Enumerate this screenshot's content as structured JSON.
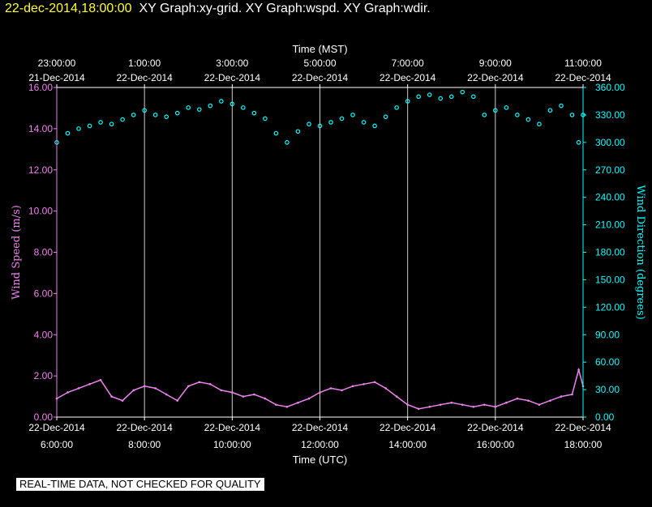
{
  "header": {
    "timestamp": "22-dec-2014,18:00:00",
    "graphs": "XY Graph:xy-grid.  XY Graph:wspd.  XY Graph:wdir."
  },
  "notice": "REAL-TIME DATA, NOT CHECKED FOR QUALITY",
  "colors": {
    "background": "#000000",
    "speed": "#ee82ee",
    "direction": "#00ffff",
    "grid": "#ffffff",
    "timestamp": "#ffff33"
  },
  "chart_data": {
    "type": "scatter",
    "top_axis_title": "Time (MST)",
    "bottom_axis_title": "Time (UTC)",
    "top_ticks": [
      {
        "time": "23:00:00",
        "date": "21-Dec-2014"
      },
      {
        "time": "1:00:00",
        "date": "22-Dec-2014"
      },
      {
        "time": "3:00:00",
        "date": "22-Dec-2014"
      },
      {
        "time": "5:00:00",
        "date": "22-Dec-2014"
      },
      {
        "time": "7:00:00",
        "date": "22-Dec-2014"
      },
      {
        "time": "9:00:00",
        "date": "22-Dec-2014"
      },
      {
        "time": "11:00:00",
        "date": "22-Dec-2014"
      }
    ],
    "bottom_ticks": [
      {
        "date": "22-Dec-2014",
        "time": "6:00:00"
      },
      {
        "date": "22-Dec-2014",
        "time": "8:00:00"
      },
      {
        "date": "22-Dec-2014",
        "time": "10:00:00"
      },
      {
        "date": "22-Dec-2014",
        "time": "12:00:00"
      },
      {
        "date": "22-Dec-2014",
        "time": "14:00:00"
      },
      {
        "date": "22-Dec-2014",
        "time": "16:00:00"
      },
      {
        "date": "22-Dec-2014",
        "time": "18:00:00"
      }
    ],
    "x_range_utc_hours": [
      6,
      18
    ],
    "grid": "vertical lines at each 2-hour tick",
    "y_left": {
      "label": "Wind Speed (m/s)",
      "range": [
        0,
        16
      ],
      "ticks": [
        "0.00",
        "2.00",
        "4.00",
        "6.00",
        "8.00",
        "10.00",
        "12.00",
        "14.00",
        "16.00"
      ]
    },
    "y_right": {
      "label": "Wind Direction (degrees)",
      "range": [
        0,
        360
      ],
      "ticks": [
        "0.00",
        "30.00",
        "60.00",
        "90.00",
        "120.00",
        "150.00",
        "180.00",
        "210.00",
        "240.00",
        "270.00",
        "300.00",
        "330.00",
        "360.00"
      ]
    },
    "series": [
      {
        "key": "speed",
        "axis": "left",
        "style": "line",
        "x_utc_hours": [
          6.0,
          6.25,
          6.5,
          6.75,
          7.0,
          7.25,
          7.5,
          7.75,
          8.0,
          8.25,
          8.5,
          8.75,
          9.0,
          9.25,
          9.5,
          9.75,
          10.0,
          10.25,
          10.5,
          10.75,
          11.0,
          11.25,
          11.5,
          11.75,
          12.0,
          12.25,
          12.5,
          12.75,
          13.0,
          13.25,
          13.5,
          13.75,
          14.0,
          14.25,
          14.5,
          14.75,
          15.0,
          15.25,
          15.5,
          15.75,
          16.0,
          16.25,
          16.5,
          16.75,
          17.0,
          17.25,
          17.5,
          17.75,
          17.9,
          18.0
        ],
        "values": [
          0.9,
          1.2,
          1.4,
          1.6,
          1.8,
          1.0,
          0.8,
          1.3,
          1.5,
          1.4,
          1.1,
          0.8,
          1.5,
          1.7,
          1.6,
          1.3,
          1.2,
          1.0,
          1.1,
          0.9,
          0.6,
          0.5,
          0.7,
          0.9,
          1.2,
          1.4,
          1.3,
          1.5,
          1.6,
          1.7,
          1.4,
          1.0,
          0.6,
          0.4,
          0.5,
          0.6,
          0.7,
          0.6,
          0.5,
          0.6,
          0.5,
          0.7,
          0.9,
          0.8,
          0.6,
          0.8,
          1.0,
          1.1,
          2.3,
          1.5
        ]
      },
      {
        "key": "direction",
        "axis": "right",
        "style": "circles",
        "x_utc_hours": [
          6.0,
          6.25,
          6.5,
          6.75,
          7.0,
          7.25,
          7.5,
          7.75,
          8.0,
          8.25,
          8.5,
          8.75,
          9.0,
          9.25,
          9.5,
          9.75,
          10.0,
          10.25,
          10.5,
          10.75,
          11.0,
          11.25,
          11.5,
          11.75,
          12.0,
          12.25,
          12.5,
          12.75,
          13.0,
          13.25,
          13.5,
          13.75,
          14.0,
          14.25,
          14.5,
          14.75,
          15.0,
          15.25,
          15.5,
          15.75,
          16.0,
          16.25,
          16.5,
          16.75,
          17.0,
          17.25,
          17.5,
          17.75,
          17.9,
          18.0
        ],
        "values": [
          300,
          310,
          315,
          318,
          322,
          320,
          325,
          330,
          335,
          330,
          328,
          332,
          338,
          336,
          340,
          345,
          342,
          338,
          332,
          326,
          310,
          300,
          312,
          320,
          318,
          322,
          326,
          330,
          322,
          318,
          328,
          338,
          345,
          350,
          352,
          348,
          350,
          355,
          350,
          330,
          335,
          338,
          330,
          325,
          320,
          335,
          340,
          330,
          300,
          330
        ]
      }
    ]
  }
}
